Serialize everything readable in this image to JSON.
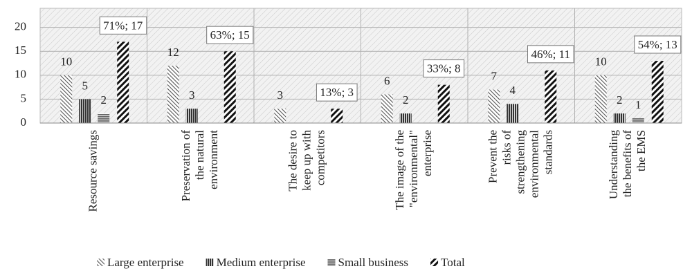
{
  "chart_data": {
    "type": "bar",
    "categories": [
      "Resource savings",
      "Preservation of the natural environment",
      "The desire to keep up with competitors",
      "The image of the \"environmental\" enterprise",
      "Prevent the risks of strengthening environmental standards",
      "Understanding the benefits of the EMS"
    ],
    "series": [
      {
        "name": "Large enterprise",
        "color": "#555555",
        "values": [
          10,
          12,
          3,
          6,
          7,
          10
        ]
      },
      {
        "name": "Medium enterprise",
        "color": "#333333",
        "values": [
          5,
          3,
          null,
          2,
          4,
          2
        ]
      },
      {
        "name": "Small business",
        "color": "#444444",
        "values": [
          2,
          null,
          null,
          null,
          null,
          1
        ]
      },
      {
        "name": "Total",
        "color": "#111111",
        "values": [
          17,
          15,
          3,
          8,
          11,
          13
        ],
        "value_labels": [
          "71%; 17",
          "63%; 15",
          "13%; 3",
          "33%; 8",
          "46%; 11",
          "54%; 13"
        ]
      }
    ],
    "ylim": [
      0,
      24
    ],
    "yticks": [
      0,
      5,
      10,
      15,
      20
    ],
    "grid": true,
    "legend": "bottom"
  }
}
